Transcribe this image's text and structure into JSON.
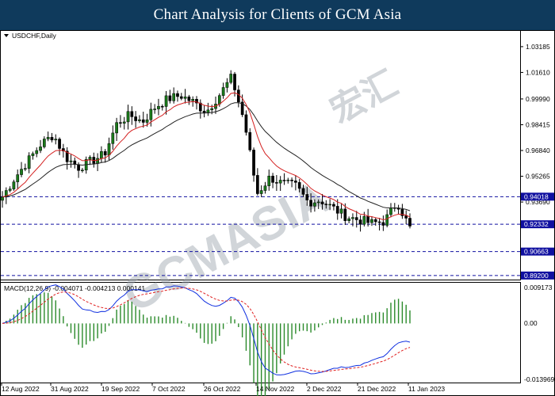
{
  "banner": {
    "title": "Chart Analysis for Clients of GCM Asia"
  },
  "symbol": {
    "label": "USDCHF,Daily"
  },
  "watermark": {
    "text": "GCMASIA",
    "chinese": "宏汇"
  },
  "macd": {
    "label": "MACD(12,26,9) -0.004071 -0.004213 0.000141",
    "axis_top": "0.009173",
    "axis_mid": "0.00",
    "axis_bottom": "-0.013969"
  },
  "price_axis": [
    {
      "text": "1.03185",
      "v": 1.03185
    },
    {
      "text": "1.01610",
      "v": 1.0161
    },
    {
      "text": "0.99990",
      "v": 0.9999
    },
    {
      "text": "0.98415",
      "v": 0.98415
    },
    {
      "text": "0.96840",
      "v": 0.9684
    },
    {
      "text": "0.95265",
      "v": 0.95265
    },
    {
      "text": "0.93690",
      "v": 0.9369
    }
  ],
  "levels": [
    {
      "text": "0.94018",
      "v": 0.94018
    },
    {
      "text": "0.92332",
      "v": 0.92332
    },
    {
      "text": "0.90663",
      "v": 0.90663
    },
    {
      "text": "0.89200",
      "v": 0.892
    }
  ],
  "dates": [
    "12 Aug 2022",
    "31 Aug 2022",
    "19 Sep 2022",
    "7 Oct 2022",
    "26 Oct 2022",
    "14 Nov 2022",
    "2 Dec 2022",
    "21 Dec 2022",
    "11 Jan 2023"
  ],
  "colors": {
    "banner": "#0f3a5c",
    "bull": "#1a7a1a",
    "bear": "#000000",
    "ma_fast": "#d42020",
    "ma_slow": "#222222",
    "level": "#1010a0",
    "macd_line": "#1030e0",
    "signal_line": "#e02020",
    "hist": "#2a8a2a",
    "label_bg": "#1010a0"
  },
  "chart_data": {
    "type": "candlestick",
    "symbol": "USDCHF",
    "timeframe": "Daily",
    "price_range": [
      0.89,
      1.041
    ],
    "levels": [
      0.94018,
      0.92332,
      0.90663,
      0.892
    ],
    "indicators": [
      "MA (red)",
      "MA (black)",
      "MACD(12,26,9)"
    ],
    "macd_values": {
      "macd": -0.004071,
      "signal": -0.004213,
      "histogram": 0.000141
    },
    "close_path": [
      {
        "d": "12 Aug 2022",
        "c": 0.94
      },
      {
        "d": "17 Aug 2022",
        "c": 0.952
      },
      {
        "d": "22 Aug 2022",
        "c": 0.962
      },
      {
        "d": "26 Aug 2022",
        "c": 0.972
      },
      {
        "d": "31 Aug 2022",
        "c": 0.978
      },
      {
        "d": "5 Sep 2022",
        "c": 0.964
      },
      {
        "d": "9 Sep 2022",
        "c": 0.958
      },
      {
        "d": "14 Sep 2022",
        "c": 0.962
      },
      {
        "d": "19 Sep 2022",
        "c": 0.966
      },
      {
        "d": "23 Sep 2022",
        "c": 0.985
      },
      {
        "d": "28 Sep 2022",
        "c": 0.99
      },
      {
        "d": "3 Oct 2022",
        "c": 0.986
      },
      {
        "d": "7 Oct 2022",
        "c": 0.995
      },
      {
        "d": "12 Oct 2022",
        "c": 1.0
      },
      {
        "d": "17 Oct 2022",
        "c": 1.002
      },
      {
        "d": "21 Oct 2022",
        "c": 0.998
      },
      {
        "d": "26 Oct 2022",
        "c": 0.992
      },
      {
        "d": "31 Oct 2022",
        "c": 1.002
      },
      {
        "d": "3 Nov 2022",
        "c": 1.013
      },
      {
        "d": "9 Nov 2022",
        "c": 0.986
      },
      {
        "d": "14 Nov 2022",
        "c": 0.942
      },
      {
        "d": "18 Nov 2022",
        "c": 0.952
      },
      {
        "d": "23 Nov 2022",
        "c": 0.948
      },
      {
        "d": "28 Nov 2022",
        "c": 0.947
      },
      {
        "d": "2 Dec 2022",
        "c": 0.937
      },
      {
        "d": "7 Dec 2022",
        "c": 0.938
      },
      {
        "d": "12 Dec 2022",
        "c": 0.933
      },
      {
        "d": "16 Dec 2022",
        "c": 0.928
      },
      {
        "d": "21 Dec 2022",
        "c": 0.926
      },
      {
        "d": "26 Dec 2022",
        "c": 0.924
      },
      {
        "d": "30 Dec 2022",
        "c": 0.925
      },
      {
        "d": "4 Jan 2023",
        "c": 0.937
      },
      {
        "d": "11 Jan 2023",
        "c": 0.921
      }
    ]
  }
}
